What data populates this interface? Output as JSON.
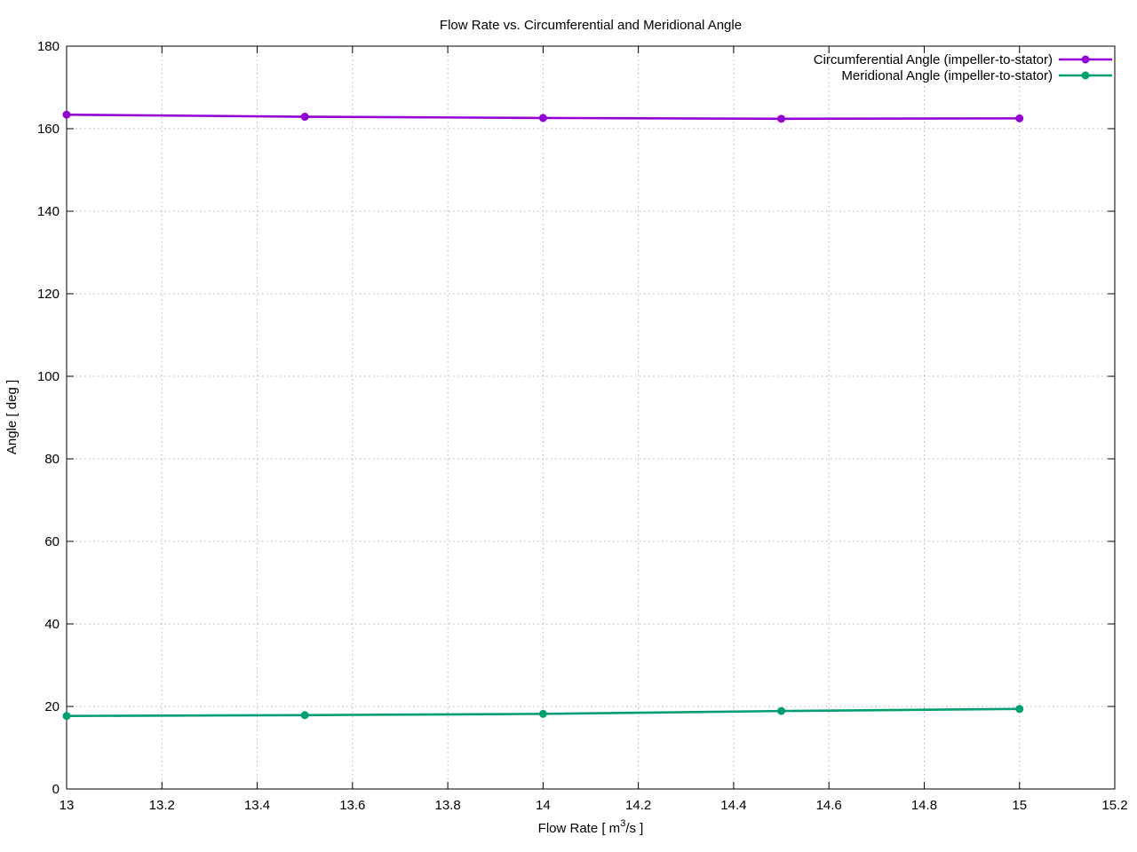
{
  "chart_data": {
    "type": "line",
    "title": "Flow Rate vs. Circumferential and Meridional Angle",
    "xlabel": {
      "prefix": "Flow Rate [ m",
      "sup": "3",
      "suffix": "/s ]"
    },
    "ylabel": "Angle [ deg ]",
    "xlim": [
      13,
      15.2
    ],
    "ylim": [
      0,
      180
    ],
    "xticks": [
      13,
      13.2,
      13.4,
      13.6,
      13.8,
      14,
      14.2,
      14.4,
      14.6,
      14.8,
      15,
      15.2
    ],
    "yticks": [
      0,
      20,
      40,
      60,
      80,
      100,
      120,
      140,
      160,
      180
    ],
    "grid": true,
    "legend_position": "top-right-inside",
    "x": [
      13,
      13.5,
      14,
      14.5,
      15
    ],
    "series": [
      {
        "name": "Circumferential Angle (impeller-to-stator)",
        "color": "#9400d3",
        "values": [
          163.4,
          162.9,
          162.6,
          162.4,
          162.5
        ]
      },
      {
        "name": "Meridional Angle (impeller-to-stator)",
        "color": "#009e73",
        "values": [
          17.7,
          17.9,
          18.2,
          18.9,
          19.4
        ]
      }
    ]
  }
}
